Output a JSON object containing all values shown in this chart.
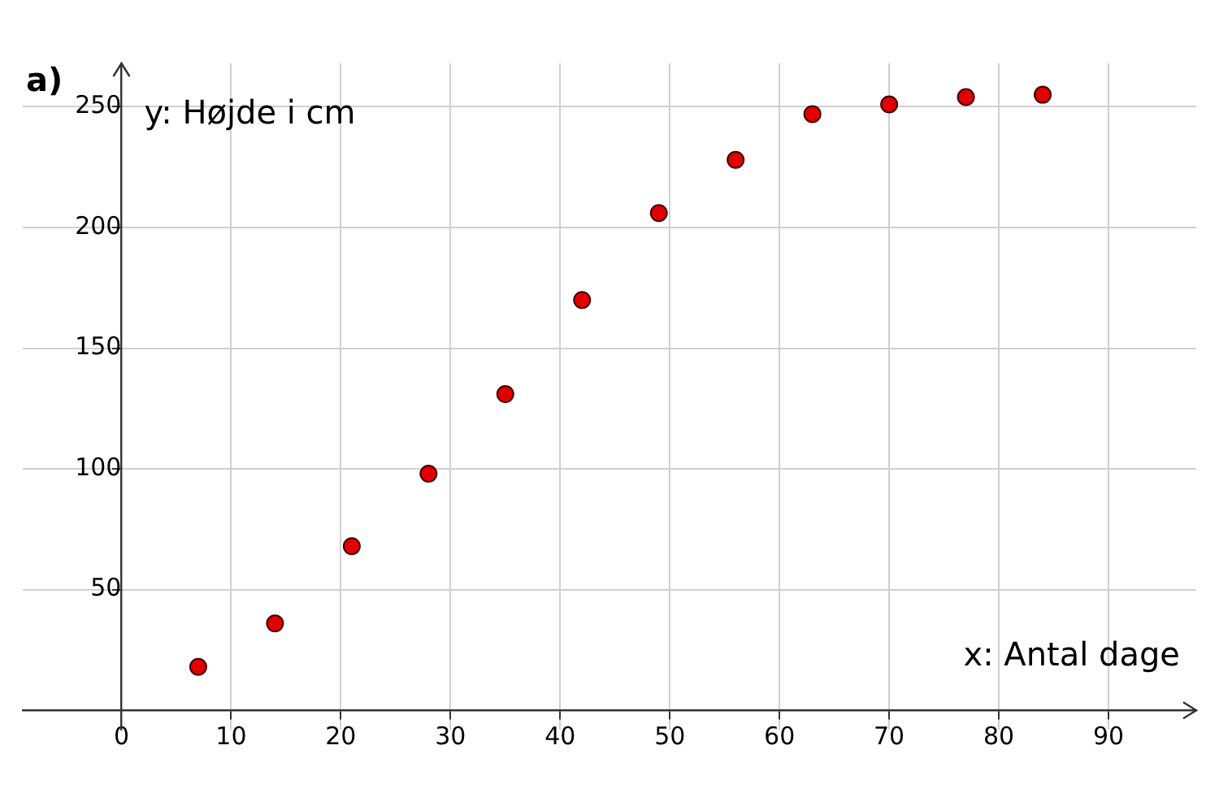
{
  "chart_data": {
    "type": "scatter",
    "xlabel": "x: Antal dage",
    "ylabel": "y: Højde i cm",
    "annotations": [
      "a)"
    ],
    "x": [
      7,
      14,
      21,
      28,
      35,
      42,
      49,
      56,
      63,
      70,
      77,
      84
    ],
    "series": [
      {
        "color": "#e00000",
        "values": [
          18,
          36,
          68,
          98,
          131,
          170,
          206,
          228,
          247,
          251,
          254,
          255
        ]
      }
    ],
    "xlim": [
      -9,
      98
    ],
    "ylim": [
      -8,
      268
    ],
    "xticks": [
      0,
      10,
      20,
      30,
      40,
      50,
      60,
      70,
      80,
      90
    ],
    "yticks": [
      {
        "value": 0,
        "label": null
      },
      50,
      100,
      150,
      200,
      250
    ],
    "grid": true,
    "legend": false,
    "marker": "circle"
  }
}
